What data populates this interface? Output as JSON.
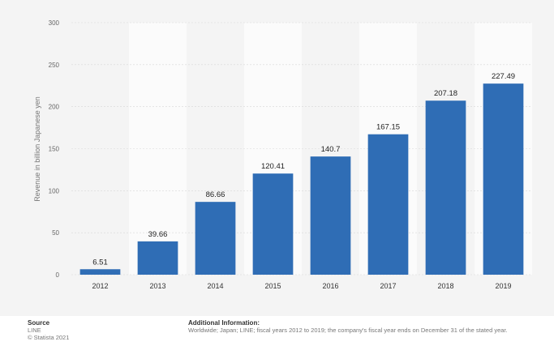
{
  "chart_data": {
    "type": "bar",
    "categories": [
      "2012",
      "2013",
      "2014",
      "2015",
      "2016",
      "2017",
      "2018",
      "2019"
    ],
    "values": [
      6.51,
      39.66,
      86.66,
      120.41,
      140.7,
      167.15,
      207.18,
      227.49
    ],
    "value_labels": [
      "6.51",
      "39.66",
      "86.66",
      "120.41",
      "140.7",
      "167.15",
      "207.18",
      "227.49"
    ],
    "ylabel": "Revenue in billion Japanese yen",
    "yticks": [
      "0",
      "50",
      "100",
      "150",
      "200",
      "250",
      "300"
    ],
    "ylim": [
      0,
      300
    ],
    "grid": true,
    "bar_color": "#2f6db5"
  },
  "footer": {
    "source_heading": "Source",
    "source_name": "LINE",
    "copyright": "© Statista 2021",
    "info_heading": "Additional Information:",
    "info_text": "Worldwide; Japan; LINE; fiscal years 2012 to 2019; the company's fiscal year ends on December 31 of the stated year."
  }
}
